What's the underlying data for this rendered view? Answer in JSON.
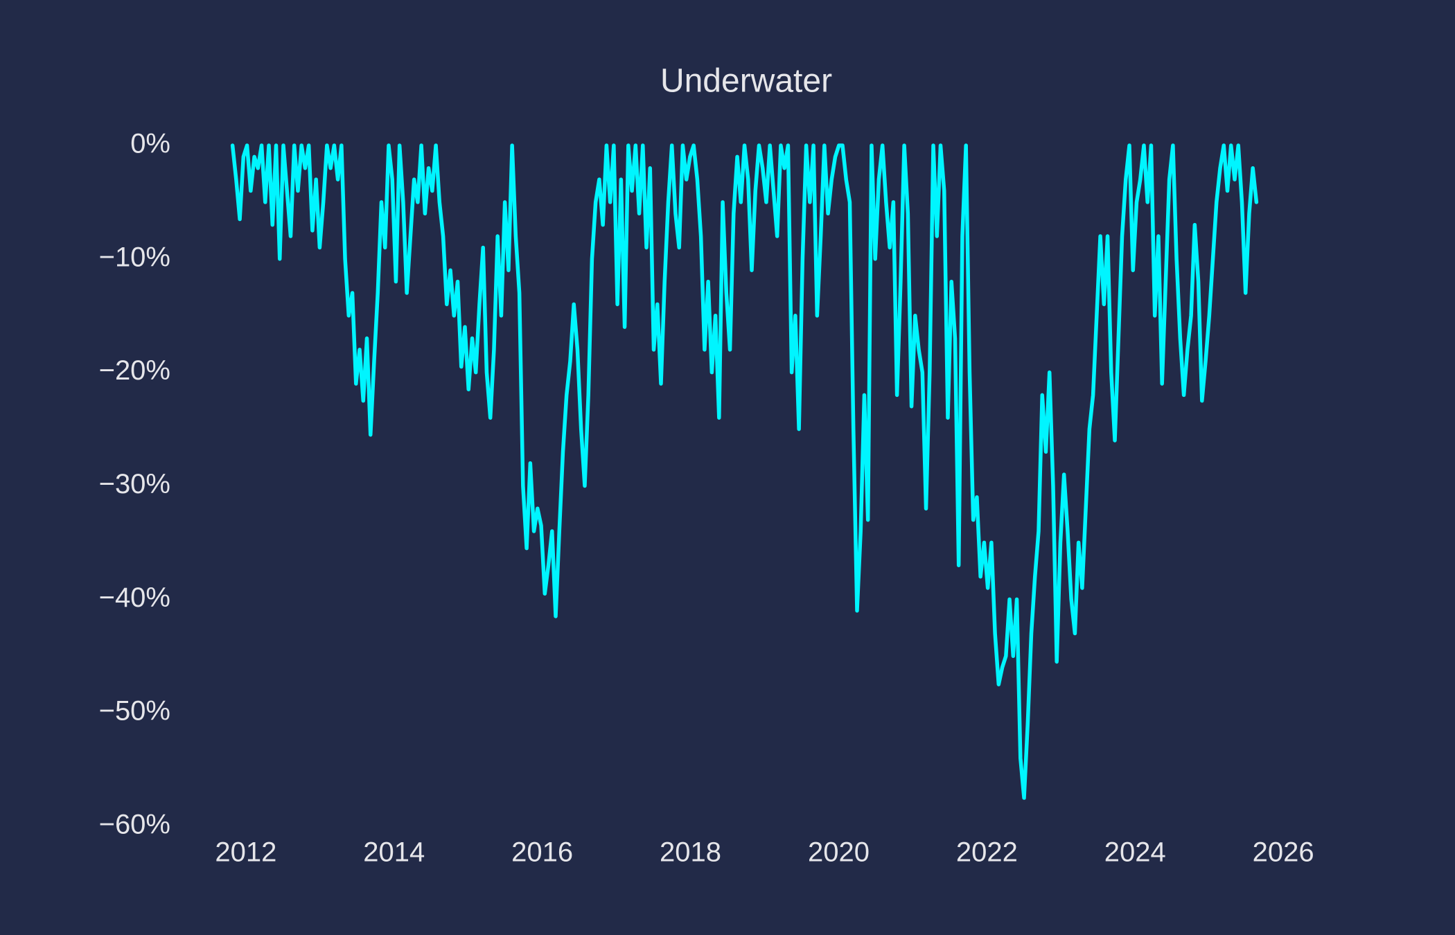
{
  "chart_data": {
    "type": "line",
    "title": "Underwater",
    "color": "#00f5ff",
    "grid": false,
    "xlim": [
      2011.3,
      2026.7
    ],
    "xticks": [
      2012,
      2014,
      2016,
      2018,
      2020,
      2022,
      2024,
      2026
    ],
    "ylim": [
      -61,
      1
    ],
    "yticks": [
      {
        "value": 0,
        "label": "0%"
      },
      {
        "value": -10,
        "label": "−10%"
      },
      {
        "value": -20,
        "label": "−20%"
      },
      {
        "value": -30,
        "label": "−30%"
      },
      {
        "value": -40,
        "label": "−40%"
      },
      {
        "value": -50,
        "label": "−50%"
      },
      {
        "value": -60,
        "label": "−60%"
      }
    ],
    "x": [
      2011.82,
      2011.869,
      2011.918,
      2011.967,
      2012.016,
      2012.065,
      2012.114,
      2012.163,
      2012.212,
      2012.261,
      2012.31,
      2012.359,
      2012.408,
      2012.457,
      2012.506,
      2012.555,
      2012.604,
      2012.653,
      2012.702,
      2012.751,
      2012.8,
      2012.849,
      2012.898,
      2012.947,
      2012.996,
      2013.045,
      2013.094,
      2013.143,
      2013.192,
      2013.241,
      2013.29,
      2013.339,
      2013.388,
      2013.437,
      2013.486,
      2013.535,
      2013.584,
      2013.633,
      2013.682,
      2013.731,
      2013.78,
      2013.829,
      2013.878,
      2013.927,
      2013.976,
      2014.025,
      2014.074,
      2014.123,
      2014.172,
      2014.221,
      2014.27,
      2014.319,
      2014.368,
      2014.417,
      2014.466,
      2014.515,
      2014.564,
      2014.613,
      2014.662,
      2014.711,
      2014.76,
      2014.809,
      2014.858,
      2014.907,
      2014.956,
      2015.005,
      2015.054,
      2015.103,
      2015.152,
      2015.201,
      2015.25,
      2015.299,
      2015.348,
      2015.397,
      2015.446,
      2015.495,
      2015.544,
      2015.593,
      2015.642,
      2015.691,
      2015.74,
      2015.789,
      2015.838,
      2015.887,
      2015.936,
      2015.985,
      2016.034,
      2016.083,
      2016.132,
      2016.181,
      2016.23,
      2016.279,
      2016.328,
      2016.377,
      2016.426,
      2016.475,
      2016.524,
      2016.573,
      2016.622,
      2016.671,
      2016.72,
      2016.769,
      2016.818,
      2016.867,
      2016.916,
      2016.965,
      2017.014,
      2017.063,
      2017.112,
      2017.161,
      2017.21,
      2017.259,
      2017.308,
      2017.357,
      2017.406,
      2017.455,
      2017.504,
      2017.553,
      2017.602,
      2017.651,
      2017.7,
      2017.749,
      2017.798,
      2017.847,
      2017.896,
      2017.945,
      2017.994,
      2018.043,
      2018.092,
      2018.141,
      2018.19,
      2018.239,
      2018.288,
      2018.337,
      2018.386,
      2018.435,
      2018.484,
      2018.533,
      2018.582,
      2018.631,
      2018.68,
      2018.729,
      2018.778,
      2018.827,
      2018.876,
      2018.925,
      2018.974,
      2019.023,
      2019.072,
      2019.121,
      2019.17,
      2019.219,
      2019.268,
      2019.317,
      2019.366,
      2019.415,
      2019.464,
      2019.513,
      2019.562,
      2019.611,
      2019.66,
      2019.709,
      2019.758,
      2019.807,
      2019.856,
      2019.905,
      2019.954,
      2020.003,
      2020.052,
      2020.101,
      2020.15,
      2020.199,
      2020.248,
      2020.297,
      2020.346,
      2020.395,
      2020.444,
      2020.493,
      2020.542,
      2020.591,
      2020.64,
      2020.689,
      2020.738,
      2020.787,
      2020.836,
      2020.885,
      2020.934,
      2020.983,
      2021.032,
      2021.081,
      2021.13,
      2021.179,
      2021.228,
      2021.277,
      2021.326,
      2021.375,
      2021.424,
      2021.473,
      2021.522,
      2021.571,
      2021.62,
      2021.669,
      2021.718,
      2021.767,
      2021.816,
      2021.865,
      2021.914,
      2021.963,
      2022.012,
      2022.061,
      2022.11,
      2022.159,
      2022.208,
      2022.257,
      2022.306,
      2022.355,
      2022.404,
      2022.453,
      2022.502,
      2022.551,
      2022.6,
      2022.649,
      2022.698,
      2022.747,
      2022.796,
      2022.845,
      2022.894,
      2022.943,
      2022.992,
      2023.041,
      2023.09,
      2023.139,
      2023.188,
      2023.237,
      2023.286,
      2023.335,
      2023.384,
      2023.433,
      2023.482,
      2023.531,
      2023.58,
      2023.629,
      2023.678,
      2023.727,
      2023.776,
      2023.825,
      2023.874,
      2023.923,
      2023.972,
      2024.021,
      2024.07,
      2024.119,
      2024.168,
      2024.217,
      2024.266,
      2024.315,
      2024.364,
      2024.413,
      2024.462,
      2024.511,
      2024.56,
      2024.609,
      2024.658,
      2024.707,
      2024.756,
      2024.805,
      2024.854,
      2024.903,
      2024.952,
      2025.001,
      2025.05,
      2025.099,
      2025.148,
      2025.197,
      2025.246,
      2025.295,
      2025.344,
      2025.393,
      2025.442,
      2025.491,
      2025.54,
      2025.589,
      2025.638
    ],
    "values": [
      0,
      -3,
      -6.5,
      -1,
      0,
      -4,
      -1,
      -2,
      0,
      -5,
      0,
      -7,
      0,
      -10,
      0,
      -4,
      -8,
      0,
      -4,
      0,
      -2,
      0,
      -7.5,
      -3,
      -9,
      -5,
      0,
      -2,
      0,
      -3,
      0,
      -10,
      -15,
      -13,
      -21,
      -18,
      -22.5,
      -17,
      -25.5,
      -19,
      -13,
      -5,
      -9,
      0,
      -3,
      -12,
      0,
      -5,
      -13,
      -8,
      -3,
      -5,
      0,
      -6,
      -2,
      -4,
      0,
      -5,
      -8,
      -14,
      -11,
      -15,
      -12,
      -19.5,
      -16,
      -21.5,
      -17,
      -20,
      -14,
      -9,
      -20,
      -24,
      -18,
      -8,
      -15,
      -5,
      -11,
      0,
      -8,
      -13,
      -30,
      -35.5,
      -28,
      -34,
      -32,
      -33.5,
      -39.5,
      -37,
      -34,
      -41.5,
      -34,
      -27,
      -22,
      -19,
      -14,
      -18,
      -25,
      -30,
      -22,
      -10,
      -5,
      -3,
      -7,
      0,
      -5,
      0,
      -14,
      -3,
      -16,
      0,
      -4,
      0,
      -6,
      0,
      -9,
      -2,
      -18,
      -14,
      -21,
      -12,
      -5,
      0,
      -6,
      -9,
      0,
      -3,
      -1,
      0,
      -3,
      -8,
      -18,
      -12,
      -20,
      -15,
      -24,
      -5,
      -13,
      -18,
      -6,
      -1,
      -5,
      0,
      -3,
      -11,
      -4,
      0,
      -2,
      -5,
      0,
      -4,
      -8,
      0,
      -2,
      0,
      -20,
      -15,
      -25,
      -10,
      0,
      -5,
      0,
      -15,
      -8,
      0,
      -6,
      -3,
      -1,
      0,
      0,
      -3,
      -5,
      -25,
      -41,
      -34,
      -22,
      -33,
      0,
      -10,
      -3,
      0,
      -5,
      -9,
      -5,
      -22,
      -12,
      0,
      -6,
      -23,
      -15,
      -18,
      -20,
      -32,
      -20,
      0,
      -8,
      0,
      -4,
      -24,
      -12,
      -17,
      -37,
      -8,
      0,
      -20,
      -33,
      -31,
      -38,
      -35,
      -39,
      -35,
      -43,
      -47.5,
      -46,
      -45,
      -40,
      -45,
      -40,
      -54,
      -57.5,
      -51,
      -43,
      -38,
      -34,
      -22,
      -27,
      -20,
      -30,
      -45.5,
      -35,
      -29,
      -34,
      -40,
      -43,
      -35,
      -39,
      -32,
      -25,
      -22,
      -15,
      -8,
      -14,
      -8,
      -20,
      -26,
      -17,
      -8,
      -3,
      0,
      -11,
      -5,
      -3,
      0,
      -5,
      0,
      -15,
      -8,
      -21,
      -12,
      -3,
      0,
      -10,
      -17,
      -22,
      -18,
      -15,
      -7,
      -12,
      -22.5,
      -19,
      -15,
      -10,
      -5,
      -2,
      0,
      -4,
      0,
      -3,
      0,
      -5,
      -13,
      -6,
      -2,
      -5
    ]
  }
}
